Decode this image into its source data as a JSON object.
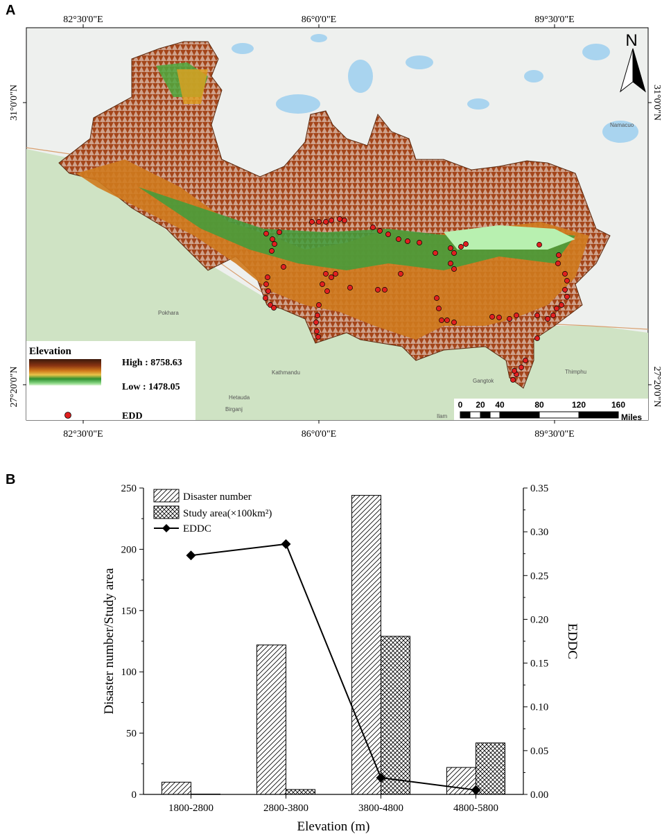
{
  "panel_a": {
    "label": "A",
    "top_lon_labels": [
      "82°30'0\"E",
      "86°0'0\"E",
      "89°30'0\"E"
    ],
    "bottom_lon_labels": [
      "82°30'0\"E",
      "86°0'0\"E",
      "89°30'0\"E"
    ],
    "left_lat_labels": [
      "31°0'0\"N",
      "27°20'0\"N"
    ],
    "right_lat_labels": [
      "31°0'0\"N",
      "27°20'0\"N"
    ],
    "north_label": "N",
    "legend": {
      "title": "Elevation",
      "high": "High : 8758.63",
      "low": "Low : 1478.05",
      "points": "EDD"
    },
    "scale": {
      "ticks": [
        "0",
        "20",
        "40",
        "80",
        "120",
        "160"
      ],
      "unit": "Miles"
    },
    "places": [
      "Namacuo",
      "Pokhara",
      "Kathmandu",
      "Hetauda",
      "Gangtok",
      "Thimphu",
      "Ilam",
      "Birganj"
    ],
    "colors": {
      "background": "#e9ece8",
      "green": "#c9e2c0",
      "water": "#a9d4ef",
      "terrain_high": "#6b2a10",
      "terrain_mid": "#c96a14",
      "terrain_low": "#3f9e3c",
      "edd_point": "#e02020"
    }
  },
  "panel_b": {
    "label": "B"
  },
  "chart_data": {
    "type": "bar",
    "categories": [
      "1800-2800",
      "2800-3800",
      "3800-4800",
      "4800-5800"
    ],
    "series": [
      {
        "name": "Disaster number",
        "values": [
          10,
          122,
          244,
          22
        ],
        "axis": "left",
        "pattern": "diagonal-hatch"
      },
      {
        "name": "Study area(×100km²)",
        "values": [
          0.3,
          4,
          129,
          42
        ],
        "axis": "left",
        "pattern": "crosshatch"
      },
      {
        "name": "EDDC",
        "values": [
          0.273,
          0.286,
          0.019,
          0.005
        ],
        "axis": "right",
        "type": "line",
        "marker": "diamond"
      }
    ],
    "xlabel": "Elevation (m)",
    "ylabel": "Disaster number/Study area",
    "y2label": "EDDC",
    "ylim": [
      0,
      250
    ],
    "y2lim": [
      0,
      0.35
    ],
    "yticks": [
      "0",
      "50",
      "100",
      "150",
      "200",
      "250"
    ],
    "y2ticks": [
      "0.00",
      "0.05",
      "0.10",
      "0.15",
      "0.20",
      "0.25",
      "0.30",
      "0.35"
    ],
    "legend_position": "top-left"
  }
}
